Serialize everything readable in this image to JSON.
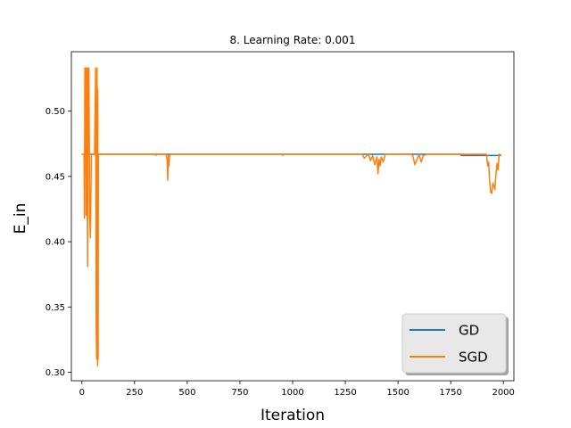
{
  "chart_data": {
    "type": "line",
    "title": "8. Learning Rate: 0.001",
    "xlabel": "Iteration",
    "ylabel": "E_in",
    "xlim": [
      -50,
      2050
    ],
    "ylim": [
      0.2935,
      0.5455
    ],
    "xticks": [
      0,
      250,
      500,
      750,
      1000,
      1250,
      1500,
      1750,
      2000
    ],
    "yticks": [
      0.3,
      0.35,
      0.4,
      0.45,
      0.5
    ],
    "ytick_labels": [
      "0.30",
      "0.35",
      "0.40",
      "0.45",
      "0.50"
    ],
    "grid": false,
    "legend_position": "lower-right",
    "series": [
      {
        "name": "GD",
        "color": "#1f77b4",
        "x": [
          0,
          1800,
          1800,
          1990
        ],
        "y": [
          0.467,
          0.467,
          0.466,
          0.466
        ]
      },
      {
        "name": "SGD",
        "color": "#ff7f0e",
        "x": [
          0,
          10,
          12,
          14,
          15,
          18,
          20,
          22,
          24,
          27,
          30,
          33,
          37,
          40,
          45,
          50,
          60,
          65,
          68,
          70,
          72,
          74,
          75,
          77,
          78,
          80,
          82,
          85,
          90,
          350,
          352,
          355,
          400,
          405,
          407,
          410,
          413,
          415,
          420,
          425,
          950,
          952,
          955,
          1330,
          1340,
          1360,
          1370,
          1380,
          1390,
          1400,
          1405,
          1410,
          1415,
          1420,
          1430,
          1440,
          1450,
          1560,
          1570,
          1580,
          1590,
          1600,
          1610,
          1620,
          1640,
          1650,
          1920,
          1925,
          1930,
          1935,
          1940,
          1945,
          1950,
          1960,
          1965,
          1970,
          1975,
          1980,
          1990
        ],
        "y": [
          0.467,
          0.467,
          0.418,
          0.533,
          0.533,
          0.533,
          0.42,
          0.533,
          0.533,
          0.381,
          0.533,
          0.533,
          0.42,
          0.403,
          0.467,
          0.467,
          0.467,
          0.533,
          0.33,
          0.31,
          0.533,
          0.305,
          0.517,
          0.31,
          0.467,
          0.467,
          0.467,
          0.467,
          0.467,
          0.467,
          0.466,
          0.467,
          0.467,
          0.462,
          0.447,
          0.466,
          0.458,
          0.465,
          0.467,
          0.467,
          0.467,
          0.466,
          0.467,
          0.467,
          0.464,
          0.467,
          0.462,
          0.466,
          0.459,
          0.465,
          0.452,
          0.463,
          0.458,
          0.465,
          0.461,
          0.467,
          0.467,
          0.467,
          0.466,
          0.459,
          0.463,
          0.467,
          0.461,
          0.466,
          0.467,
          0.467,
          0.467,
          0.458,
          0.461,
          0.446,
          0.438,
          0.437,
          0.445,
          0.44,
          0.452,
          0.46,
          0.455,
          0.467,
          0.466
        ]
      }
    ]
  }
}
